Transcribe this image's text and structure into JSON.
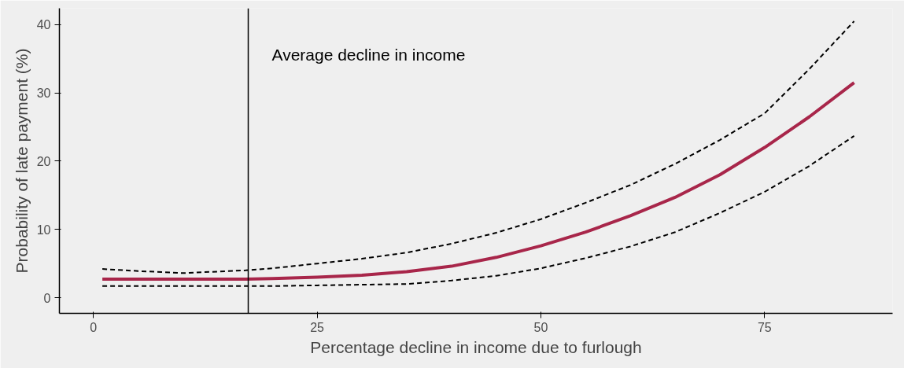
{
  "chart_data": {
    "type": "line",
    "xlabel": "Percentage decline in income due to furlough",
    "ylabel": "Probability of late payment (%)",
    "x": [
      1,
      5,
      10,
      17,
      20,
      25,
      30,
      35,
      40,
      45,
      50,
      55,
      60,
      65,
      70,
      75,
      80,
      85
    ],
    "series": [
      {
        "color": "#000000",
        "line_style": "dashed",
        "values": [
          1.7,
          1.7,
          1.7,
          1.7,
          1.7,
          1.8,
          1.9,
          2.0,
          2.5,
          3.2,
          4.3,
          5.8,
          7.5,
          9.6,
          12.4,
          15.5,
          19.3,
          23.7
        ]
      },
      {
        "color": "#000000",
        "line_style": "dashed",
        "values": [
          4.2,
          3.9,
          3.6,
          4.0,
          4.3,
          5.0,
          5.7,
          6.6,
          7.9,
          9.5,
          11.5,
          13.9,
          16.5,
          19.6,
          23.1,
          27,
          33.5,
          40.5
        ]
      },
      {
        "color": "#a8264a",
        "line_style": "solid",
        "values": [
          2.7,
          2.7,
          2.7,
          2.7,
          2.8,
          3.0,
          3.3,
          3.8,
          4.6,
          5.9,
          7.6,
          9.6,
          12,
          14.7,
          18,
          22,
          26.5,
          31.5
        ]
      }
    ],
    "xlim": [
      -3.8,
      89.3
    ],
    "ylim": [
      -2.3,
      42.4
    ],
    "xticks": [
      0,
      25,
      50,
      75
    ],
    "yticks": [
      0,
      10,
      20,
      30,
      40
    ],
    "ref_lines": [
      {
        "axis": "x",
        "value": 17.3,
        "label": "Average decline in income",
        "color": "#000000"
      }
    ],
    "grid": false
  }
}
